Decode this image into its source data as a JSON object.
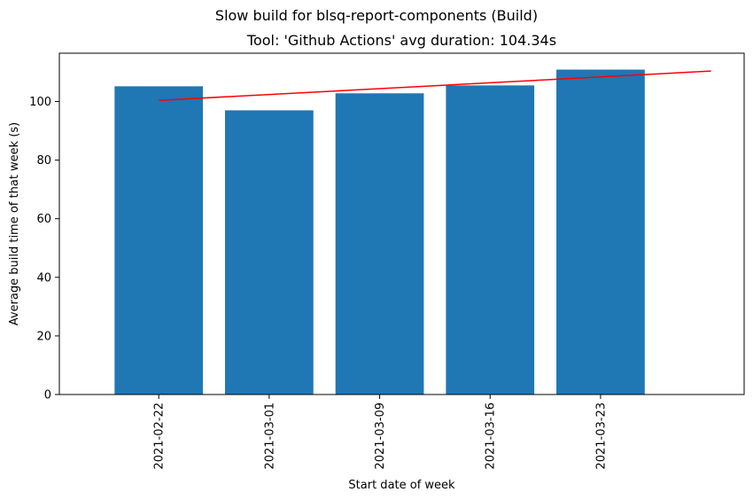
{
  "figure": {
    "suptitle": "Slow build for blsq-report-components (Build)",
    "title": "Tool: 'Github Actions' avg duration: 104.34s"
  },
  "chart_data": {
    "type": "bar",
    "title": "Tool: 'Github Actions' avg duration: 104.34s",
    "xlabel": "Start date of week",
    "ylabel": "Average build time of that week (s)",
    "categories": [
      "2021-02-22",
      "2021-03-01",
      "2021-03-09",
      "2021-03-16",
      "2021-03-23"
    ],
    "values": [
      105.2,
      97.0,
      102.8,
      105.5,
      110.9
    ],
    "bar_color": "#1f77b4",
    "ylim": [
      0,
      116.5
    ],
    "yticks": [
      0,
      20,
      40,
      60,
      80,
      100
    ],
    "trend_line": {
      "color": "#ff0000",
      "start": {
        "x": "2021-02-22",
        "y": 100.4
      },
      "end": {
        "x_index": 5,
        "y": 110.4
      }
    },
    "grid": false,
    "legend": "none"
  }
}
